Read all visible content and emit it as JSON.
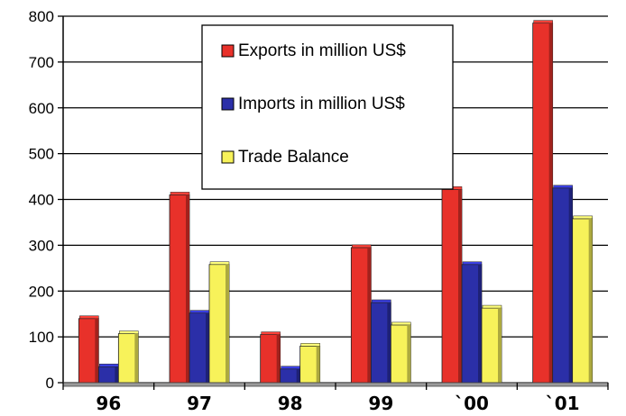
{
  "chart_data": {
    "type": "bar",
    "categories": [
      "96",
      "97",
      "98",
      "99",
      "`00",
      "`01"
    ],
    "series": [
      {
        "name": "Exports in million US$",
        "color": "#e8312a",
        "values": [
          140,
          410,
          105,
          295,
          422,
          785
        ]
      },
      {
        "name": "Imports in million US$",
        "color": "#2b2fa8",
        "values": [
          35,
          152,
          30,
          175,
          258,
          425
        ]
      },
      {
        "name": "Trade Balance",
        "color": "#f7f25a",
        "values": [
          107,
          258,
          80,
          126,
          163,
          358
        ]
      }
    ],
    "ylim": [
      0,
      800
    ],
    "yticks": [
      0,
      100,
      200,
      300,
      400,
      500,
      600,
      700,
      800
    ],
    "grid": true,
    "legend_position": "top-center"
  }
}
